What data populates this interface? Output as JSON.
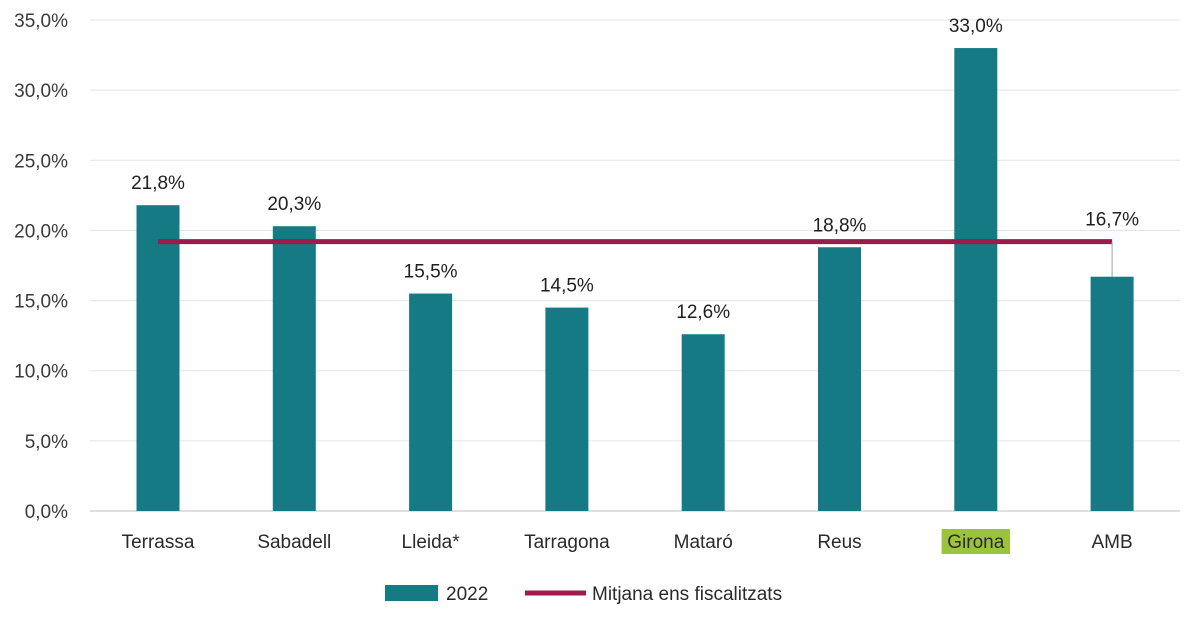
{
  "chart_data": {
    "type": "bar",
    "categories": [
      "Terrassa",
      "Sabadell",
      "Lleida*",
      "Tarragona",
      "Mataró",
      "Reus",
      "Girona",
      "AMB"
    ],
    "highlight_category": "Girona",
    "highlight_color": "#9bc43a",
    "series": [
      {
        "name": "2022",
        "type": "bar",
        "color": "#157a84",
        "values": [
          21.8,
          20.3,
          15.5,
          14.5,
          12.6,
          18.8,
          33.0,
          16.7
        ],
        "data_labels": [
          "21,8%",
          "20,3%",
          "15,5%",
          "14,5%",
          "12,6%",
          "18,8%",
          "33,0%",
          "16,7%"
        ]
      },
      {
        "name": "Mitjana ens fiscalitzats",
        "type": "line",
        "color": "#9b1b4a",
        "value": 19.2
      }
    ],
    "ylim": [
      0,
      35
    ],
    "yticks": [
      0,
      5,
      10,
      15,
      20,
      25,
      30,
      35
    ],
    "ytick_labels": [
      "0,0%",
      "5,0%",
      "10,0%",
      "15,0%",
      "20,0%",
      "25,0%",
      "30,0%",
      "35,0%"
    ],
    "grid": "horizontal",
    "legend": "bottom-center",
    "title": "",
    "xlabel": "",
    "ylabel": ""
  }
}
